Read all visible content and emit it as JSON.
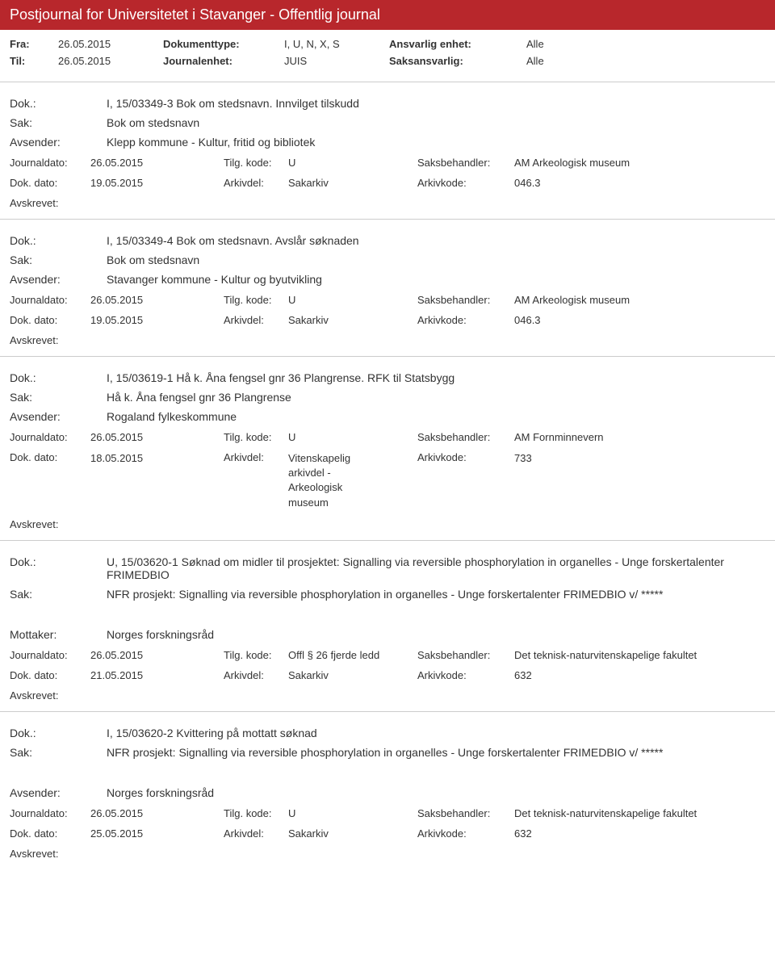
{
  "header_title": "Postjournal for Universitetet i Stavanger - Offentlig journal",
  "meta": {
    "fra_label": "Fra:",
    "fra_value": "26.05.2015",
    "til_label": "Til:",
    "til_value": "26.05.2015",
    "doctype_label": "Dokumenttype:",
    "doctype_value": "I, U, N, X, S",
    "journalenhet_label": "Journalenhet:",
    "journalenhet_value": "JUIS",
    "ansvarlig_label": "Ansvarlig enhet:",
    "ansvarlig_value": "Alle",
    "saksansvarlig_label": "Saksansvarlig:",
    "saksansvarlig_value": "Alle"
  },
  "labels": {
    "dok": "Dok.:",
    "sak": "Sak:",
    "avsender": "Avsender:",
    "mottaker": "Mottaker:",
    "journaldato": "Journaldato:",
    "tilgkode": "Tilg. kode:",
    "saksbehandler": "Saksbehandler:",
    "dokdato": "Dok. dato:",
    "arkivdel": "Arkivdel:",
    "arkivkode": "Arkivkode:",
    "avskrevet": "Avskrevet:"
  },
  "entries": [
    {
      "dok": "I, 15/03349-3 Bok om stedsnavn. Innvilget tilskudd",
      "sak": "Bok om stedsnavn",
      "sender_label": "Avsender:",
      "sender": "Klepp kommune - Kultur, fritid og bibliotek",
      "journaldato": "26.05.2015",
      "tilgkode": "U",
      "saksbehandler": "AM Arkeologisk museum",
      "dokdato": "19.05.2015",
      "arkivdel": "Sakarkiv",
      "arkivkode": "046.3"
    },
    {
      "dok": "I, 15/03349-4 Bok om stedsnavn. Avslår søknaden",
      "sak": "Bok om stedsnavn",
      "sender_label": "Avsender:",
      "sender": "Stavanger kommune - Kultur og byutvikling",
      "journaldato": "26.05.2015",
      "tilgkode": "U",
      "saksbehandler": "AM Arkeologisk museum",
      "dokdato": "19.05.2015",
      "arkivdel": "Sakarkiv",
      "arkivkode": "046.3"
    },
    {
      "dok": "I, 15/03619-1 Hå k. Åna fengsel gnr 36 Plangrense. RFK til Statsbygg",
      "sak": "Hå k. Åna fengsel gnr 36 Plangrense",
      "sender_label": "Avsender:",
      "sender": "Rogaland fylkeskommune",
      "journaldato": "26.05.2015",
      "tilgkode": "U",
      "saksbehandler": "AM Fornminnevern",
      "dokdato": "18.05.2015",
      "arkivdel": "Vitenskapelig arkivdel - Arkeologisk museum",
      "arkivkode": "733",
      "arkivdel_multiline": true
    },
    {
      "dok": "U, 15/03620-1 Søknad om midler til prosjektet: Signalling via reversible phosphorylation in organelles - Unge forskertalenter FRIMEDBIO",
      "sak": "NFR prosjekt: Signalling via reversible phosphorylation in organelles - Unge forskertalenter FRIMEDBIO v/ *****",
      "sender_label": "Mottaker:",
      "sender": "Norges forskningsråd",
      "journaldato": "26.05.2015",
      "tilgkode": "Offl § 26 fjerde ledd",
      "saksbehandler": "Det teknisk-naturvitenskapelige fakultet",
      "dokdato": "21.05.2015",
      "arkivdel": "Sakarkiv",
      "arkivkode": "632",
      "extra_space_sender": true
    },
    {
      "dok": "I, 15/03620-2 Kvittering på mottatt søknad",
      "sak": "NFR prosjekt: Signalling via reversible phosphorylation in organelles - Unge forskertalenter FRIMEDBIO v/ *****",
      "sender_label": "Avsender:",
      "sender": "Norges forskningsråd",
      "journaldato": "26.05.2015",
      "tilgkode": "U",
      "saksbehandler": "Det teknisk-naturvitenskapelige fakultet",
      "dokdato": "25.05.2015",
      "arkivdel": "Sakarkiv",
      "arkivkode": "632",
      "extra_space_sender": true
    }
  ],
  "colors": {
    "header_bg": "#b8272c",
    "header_text": "#ffffff",
    "separator": "#cccccc",
    "text": "#333333"
  }
}
